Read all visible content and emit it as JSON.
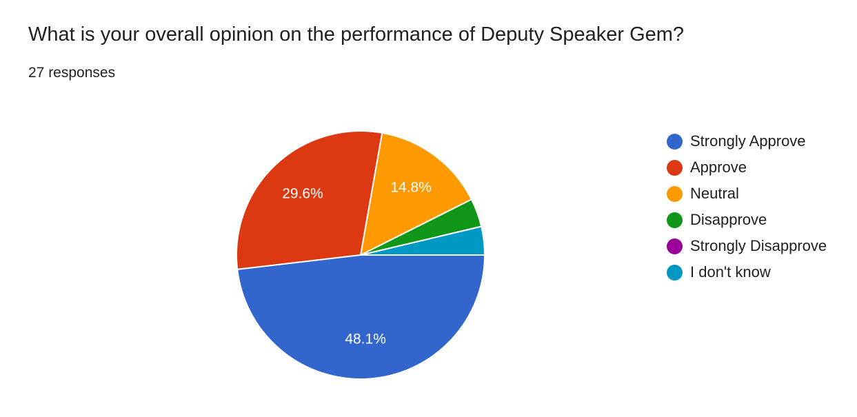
{
  "question": {
    "title": "What is your overall opinion on the performance of Deputy Speaker Gem?",
    "responses": "27 responses"
  },
  "chart_data": {
    "type": "pie",
    "title": "What is your overall opinion on the performance of Deputy Speaker Gem?",
    "total_responses": 27,
    "legend_position": "right",
    "slices": [
      {
        "label": "Strongly Approve",
        "count": 13,
        "percent": 48.1,
        "display": "48.1%",
        "color": "#3366cc"
      },
      {
        "label": "Approve",
        "count": 8,
        "percent": 29.6,
        "display": "29.6%",
        "color": "#dc3912"
      },
      {
        "label": "Neutral",
        "count": 4,
        "percent": 14.8,
        "display": "14.8%",
        "color": "#ff9900"
      },
      {
        "label": "Disapprove",
        "count": 1,
        "percent": 3.7,
        "display": "",
        "color": "#109618"
      },
      {
        "label": "Strongly Disapprove",
        "count": 0,
        "percent": 0,
        "display": "",
        "color": "#990099"
      },
      {
        "label": "I don't know",
        "count": 1,
        "percent": 3.7,
        "display": "",
        "color": "#0099c6"
      }
    ]
  }
}
